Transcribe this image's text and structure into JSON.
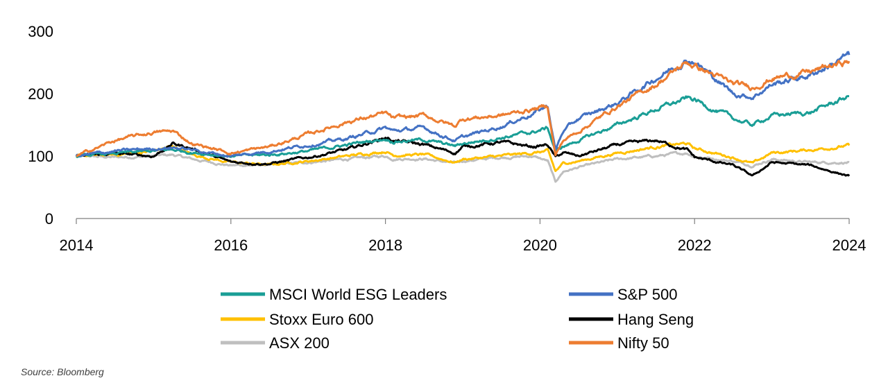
{
  "chart_data": {
    "type": "line",
    "title": "",
    "xlabel": "",
    "ylabel": "",
    "xlim": [
      2014,
      2024
    ],
    "ylim": [
      0,
      300
    ],
    "x_ticks": [
      2014,
      2016,
      2018,
      2020,
      2022,
      2024
    ],
    "y_ticks": [
      0,
      100,
      200,
      300
    ],
    "grid": false,
    "legend_position": "bottom",
    "x": [
      2014.0,
      2014.5,
      2015.0,
      2015.25,
      2015.5,
      2016.0,
      2016.5,
      2017.0,
      2017.5,
      2018.0,
      2018.1,
      2018.5,
      2018.9,
      2019.0,
      2019.5,
      2019.9,
      2020.1,
      2020.2,
      2020.3,
      2020.5,
      2021.0,
      2021.5,
      2021.9,
      2022.0,
      2022.5,
      2022.75,
      2023.0,
      2023.5,
      2024.0
    ],
    "series": [
      {
        "name": "MSCI World ESG Leaders",
        "color": "#1A9E96",
        "values": [
          100,
          104,
          108,
          110,
          106,
          100,
          102,
          108,
          118,
          128,
          124,
          126,
          116,
          120,
          130,
          138,
          145,
          108,
          115,
          125,
          150,
          175,
          192,
          190,
          160,
          150,
          165,
          170,
          196
        ]
      },
      {
        "name": "S&P 500",
        "color": "#4472C4",
        "values": [
          100,
          108,
          112,
          114,
          110,
          100,
          108,
          118,
          128,
          145,
          140,
          145,
          125,
          130,
          148,
          168,
          180,
          110,
          140,
          160,
          185,
          225,
          255,
          252,
          200,
          195,
          215,
          230,
          262
        ]
      },
      {
        "name": "Stoxx Euro 600",
        "color": "#FFC000",
        "values": [
          100,
          102,
          108,
          116,
          102,
          90,
          86,
          92,
          100,
          108,
          102,
          102,
          90,
          95,
          100,
          105,
          108,
          75,
          88,
          92,
          105,
          115,
          120,
          112,
          98,
          88,
          105,
          110,
          117
        ]
      },
      {
        "name": "Hang Seng",
        "color": "#000000",
        "values": [
          100,
          104,
          100,
          120,
          112,
          90,
          88,
          98,
          110,
          130,
          125,
          118,
          105,
          115,
          122,
          115,
          118,
          98,
          105,
          100,
          118,
          125,
          110,
          98,
          85,
          68,
          90,
          85,
          68
        ]
      },
      {
        "name": "ASX 200",
        "color": "#BFBFBF",
        "values": [
          100,
          98,
          100,
          102,
          95,
          85,
          86,
          90,
          95,
          100,
          96,
          96,
          88,
          92,
          98,
          100,
          92,
          58,
          75,
          82,
          95,
          100,
          105,
          100,
          92,
          85,
          95,
          90,
          90
        ]
      },
      {
        "name": "Nifty 50",
        "color": "#ED7D31",
        "values": [
          100,
          125,
          138,
          140,
          120,
          105,
          115,
          135,
          155,
          168,
          160,
          165,
          148,
          160,
          165,
          175,
          180,
          102,
          125,
          140,
          180,
          215,
          250,
          245,
          215,
          210,
          225,
          235,
          252
        ]
      }
    ]
  },
  "source": "Source: Bloomberg"
}
